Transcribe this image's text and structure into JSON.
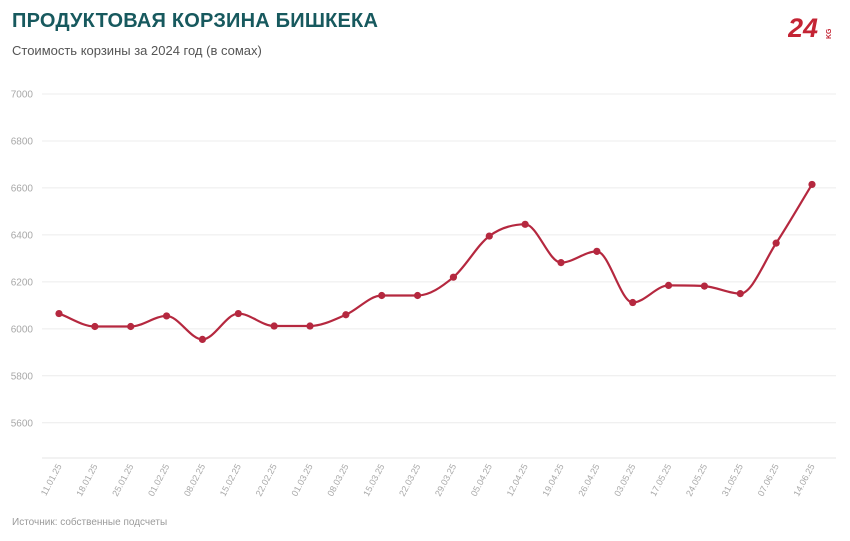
{
  "header": {
    "title": "ПРОДУКТОВАЯ КОРЗИНА БИШКЕКА",
    "subtitle": "Стоимость корзины за 2024 год (в сомах)"
  },
  "logo": {
    "main": "24",
    "suffix": "KG",
    "color": "#c42434",
    "icon": "24kg-logo"
  },
  "footer": {
    "source": "Источник: собственные подсчеты"
  },
  "colors": {
    "line": "#b5283f",
    "title": "#17595e",
    "grid": "#ececec",
    "tick": "#a8a8a8"
  },
  "chart_data": {
    "type": "line",
    "categories": [
      "11.01.25",
      "18.01.25",
      "25.01.25",
      "01.02.25",
      "08.02.25",
      "15.02.25",
      "22.02.25",
      "01.03.25",
      "08.03.25",
      "15.03.25",
      "22.03.25",
      "29.03.25",
      "05.04.25",
      "12.04.25",
      "19.04.25",
      "26.04.25",
      "03.05.25",
      "17.05.25",
      "24.05.25",
      "31.05.25",
      "07.06.25",
      "14.06.25"
    ],
    "series": [
      {
        "values": [
          6065,
          6010,
          6010,
          6055,
          5955,
          6065,
          6012,
          6012,
          6060,
          6142,
          6142,
          6220,
          6395,
          6445,
          6282,
          6330,
          6112,
          6185,
          6182,
          6150,
          6365,
          6615
        ]
      }
    ],
    "ylim": [
      5450,
      7000
    ],
    "yticks": [
      5600,
      5800,
      6000,
      6200,
      6400,
      6600,
      6800,
      7000
    ],
    "grid": true,
    "legend": "none",
    "smooth": true
  }
}
